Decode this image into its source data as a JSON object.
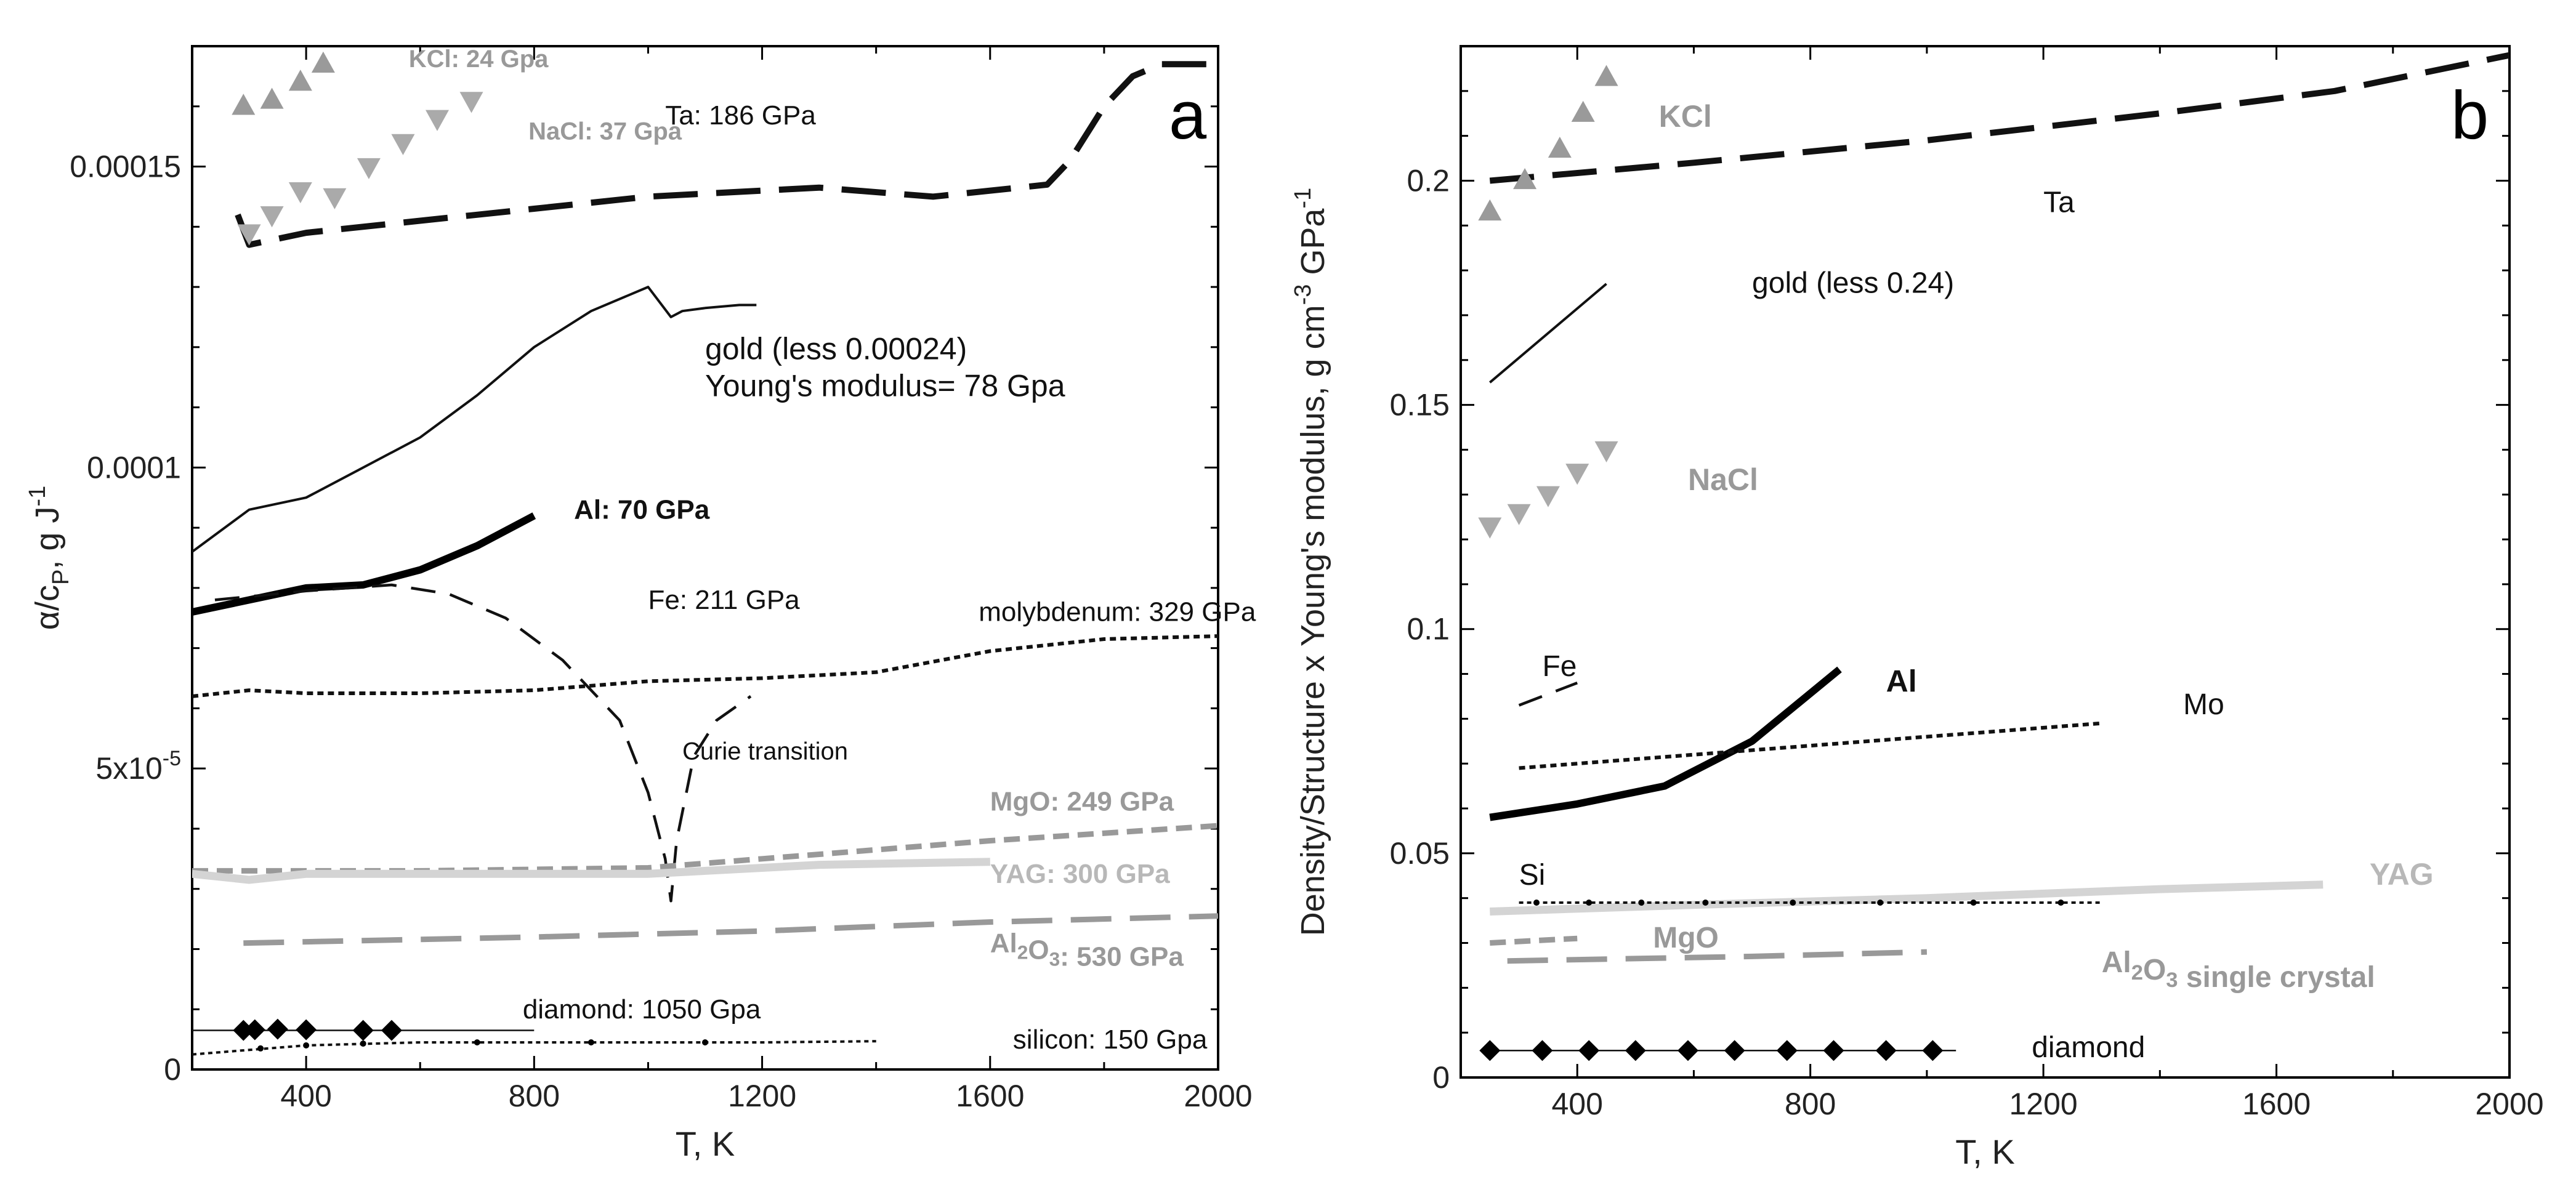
{
  "chart_data": [
    {
      "type": "line",
      "panel_label": "a",
      "xlabel": "T, K",
      "ylabel": "α/cP, g J-1",
      "xlim": [
        200,
        2000
      ],
      "ylim": [
        0,
        0.00017
      ],
      "xticks": [
        400,
        800,
        1200,
        1600,
        2000
      ],
      "yticks": [
        {
          "value": 0,
          "label": "0"
        },
        {
          "value": 5e-05,
          "label": "5x10-5"
        },
        {
          "value": 0.0001,
          "label": "0.0001"
        },
        {
          "value": 0.00015,
          "label": "0.00015"
        }
      ],
      "series": [
        {
          "name": "Ta: 186 GPa",
          "style": "ta",
          "points": [
            [
              280,
              0.000142
            ],
            [
              300,
              0.000137
            ],
            [
              400,
              0.000139
            ],
            [
              600,
              0.000141
            ],
            [
              800,
              0.000143
            ],
            [
              1000,
              0.000145
            ],
            [
              1200,
              0.000146
            ],
            [
              1300,
              0.0001465
            ],
            [
              1500,
              0.000145
            ],
            [
              1700,
              0.000147
            ],
            [
              1740,
              0.000151
            ],
            [
              1800,
              0.00016
            ],
            [
              1850,
              0.000165
            ],
            [
              1900,
              0.000167
            ],
            [
              1980,
              0.000167
            ]
          ]
        },
        {
          "name": "gold (less 0.00024) Young's modulus= 78 Gpa",
          "style": "gold",
          "points": [
            [
              200,
              8.6e-05
            ],
            [
              300,
              9.3e-05
            ],
            [
              400,
              9.5e-05
            ],
            [
              500,
              0.0001
            ],
            [
              600,
              0.000105
            ],
            [
              700,
              0.000112
            ],
            [
              800,
              0.00012
            ],
            [
              900,
              0.000126
            ],
            [
              1000,
              0.00013
            ],
            [
              1040,
              0.000125
            ],
            [
              1060,
              0.000126
            ],
            [
              1100,
              0.0001265
            ],
            [
              1160,
              0.000127
            ],
            [
              1190,
              0.000127
            ]
          ]
        },
        {
          "name": "Al: 70 GPa",
          "style": "al",
          "points": [
            [
              200,
              7.6e-05
            ],
            [
              300,
              7.8e-05
            ],
            [
              400,
              8e-05
            ],
            [
              500,
              8.05e-05
            ],
            [
              600,
              8.3e-05
            ],
            [
              700,
              8.7e-05
            ],
            [
              800,
              9.2e-05
            ]
          ]
        },
        {
          "name": "Fe: 211 GPa",
          "style": "fe",
          "points": [
            [
              240,
              7.8e-05
            ],
            [
              400,
              7.95e-05
            ],
            [
              550,
              8.05e-05
            ],
            [
              650,
              7.9e-05
            ],
            [
              750,
              7.5e-05
            ],
            [
              850,
              6.8e-05
            ],
            [
              950,
              5.8e-05
            ],
            [
              1000,
              4.6e-05
            ],
            [
              1030,
              3.5e-05
            ],
            [
              1040,
              2.8e-05
            ],
            [
              1050,
              3.8e-05
            ],
            [
              1080,
              5.2e-05
            ],
            [
              1120,
              5.8e-05
            ],
            [
              1180,
              6.2e-05
            ]
          ]
        },
        {
          "name": "molybdenum: 329 GPa",
          "style": "mo",
          "points": [
            [
              200,
              6.2e-05
            ],
            [
              300,
              6.3e-05
            ],
            [
              400,
              6.25e-05
            ],
            [
              600,
              6.25e-05
            ],
            [
              800,
              6.3e-05
            ],
            [
              1000,
              6.45e-05
            ],
            [
              1200,
              6.5e-05
            ],
            [
              1400,
              6.6e-05
            ],
            [
              1600,
              6.95e-05
            ],
            [
              1800,
              7.15e-05
            ],
            [
              2000,
              7.2e-05
            ]
          ]
        },
        {
          "name": "MgO: 249 GPa",
          "style": "mgo",
          "points": [
            [
              200,
              3.3e-05
            ],
            [
              600,
              3.3e-05
            ],
            [
              1000,
              3.35e-05
            ],
            [
              1200,
              3.5e-05
            ],
            [
              1400,
              3.65e-05
            ],
            [
              1600,
              3.8e-05
            ],
            [
              2000,
              4.05e-05
            ]
          ]
        },
        {
          "name": "YAG: 300 GPa",
          "style": "yag",
          "points": [
            [
              200,
              3.25e-05
            ],
            [
              300,
              3.15e-05
            ],
            [
              400,
              3.25e-05
            ],
            [
              600,
              3.25e-05
            ],
            [
              1000,
              3.25e-05
            ],
            [
              1300,
              3.4e-05
            ],
            [
              1600,
              3.45e-05
            ]
          ]
        },
        {
          "name": "Al2O3: 530 GPa",
          "style": "al2o3",
          "points": [
            [
              290,
              2.1e-05
            ],
            [
              800,
              2.2e-05
            ],
            [
              1200,
              2.3e-05
            ],
            [
              1600,
              2.45e-05
            ],
            [
              2000,
              2.55e-05
            ]
          ]
        },
        {
          "name": "diamond: 1050 Gpa",
          "style": "diamond",
          "points": [
            [
              200,
              6.5e-06
            ],
            [
              800,
              6.5e-06
            ]
          ],
          "markers": [
            [
              290,
              6.5e-06
            ],
            [
              310,
              6.6e-06
            ],
            [
              350,
              6.7e-06
            ],
            [
              400,
              6.6e-06
            ],
            [
              500,
              6.5e-06
            ],
            [
              550,
              6.5e-06
            ]
          ]
        },
        {
          "name": "silicon: 150 Gpa",
          "style": "silicon",
          "points": [
            [
              200,
              2.5e-06
            ],
            [
              400,
              4e-06
            ],
            [
              600,
              4.5e-06
            ],
            [
              800,
              4.5e-06
            ],
            [
              1200,
              4.5e-06
            ],
            [
              1400,
              4.7e-06
            ]
          ],
          "markers": [
            [
              320,
              3.5e-06
            ],
            [
              400,
              4e-06
            ],
            [
              500,
              4.3e-06
            ],
            [
              700,
              4.5e-06
            ],
            [
              900,
              4.5e-06
            ],
            [
              1100,
              4.5e-06
            ]
          ]
        },
        {
          "name": "KCl: 24 Gpa",
          "style": "kcl",
          "markers": [
            [
              290,
              0.00016
            ],
            [
              340,
              0.000161
            ],
            [
              390,
              0.000164
            ],
            [
              430,
              0.000167
            ]
          ]
        },
        {
          "name": "NaCl: 37 Gpa",
          "style": "nacl",
          "markers": [
            [
              300,
              0.000139
            ],
            [
              340,
              0.000142
            ],
            [
              390,
              0.000146
            ],
            [
              450,
              0.000145
            ],
            [
              510,
              0.00015
            ],
            [
              570,
              0.000154
            ],
            [
              630,
              0.000158
            ],
            [
              690,
              0.000161
            ]
          ]
        }
      ],
      "annotations": [
        {
          "text": "Curie transition",
          "x": 1060,
          "y": 5.15e-05
        }
      ]
    },
    {
      "type": "line",
      "panel_label": "b",
      "xlabel": "T, K",
      "ylabel": "Density/Structure x Young's modulus, g cm-3 GPa-1",
      "xlim": [
        200,
        2000
      ],
      "ylim": [
        0,
        0.23
      ],
      "xticks": [
        400,
        800,
        1200,
        1600,
        2000
      ],
      "yticks": [
        {
          "value": 0,
          "label": "0"
        },
        {
          "value": 0.05,
          "label": "0.05"
        },
        {
          "value": 0.1,
          "label": "0.1"
        },
        {
          "value": 0.15,
          "label": "0.15"
        },
        {
          "value": 0.2,
          "label": "0.2"
        }
      ],
      "series": [
        {
          "name": "Ta",
          "style": "ta",
          "points": [
            [
              250,
              0.2
            ],
            [
              600,
              0.204
            ],
            [
              1000,
              0.209
            ],
            [
              1400,
              0.215
            ],
            [
              1700,
              0.22
            ],
            [
              2000,
              0.228
            ]
          ]
        },
        {
          "name": "gold (less 0.24)",
          "style": "gold",
          "points": [
            [
              250,
              0.155
            ],
            [
              450,
              0.177
            ]
          ]
        },
        {
          "name": "Fe",
          "style": "fe",
          "points": [
            [
              300,
              0.083
            ],
            [
              400,
              0.088
            ]
          ]
        },
        {
          "name": "Al",
          "style": "al",
          "points": [
            [
              250,
              0.058
            ],
            [
              400,
              0.061
            ],
            [
              550,
              0.065
            ],
            [
              700,
              0.075
            ],
            [
              850,
              0.091
            ]
          ]
        },
        {
          "name": "Mo",
          "style": "mo",
          "points": [
            [
              300,
              0.069
            ],
            [
              600,
              0.072
            ],
            [
              900,
              0.075
            ],
            [
              1300,
              0.079
            ]
          ]
        },
        {
          "name": "YAG",
          "style": "yag",
          "points": [
            [
              250,
              0.037
            ],
            [
              600,
              0.0385
            ],
            [
              1000,
              0.04
            ],
            [
              1400,
              0.042
            ],
            [
              1680,
              0.043
            ]
          ]
        },
        {
          "name": "Si",
          "style": "silicon",
          "points": [
            [
              300,
              0.039
            ],
            [
              1300,
              0.039
            ]
          ],
          "markers": [
            [
              330,
              0.039
            ],
            [
              420,
              0.039
            ],
            [
              510,
              0.039
            ],
            [
              620,
              0.039
            ],
            [
              770,
              0.039
            ],
            [
              920,
              0.039
            ],
            [
              1080,
              0.039
            ],
            [
              1230,
              0.039
            ]
          ]
        },
        {
          "name": "MgO",
          "style": "mgo",
          "points": [
            [
              250,
              0.03
            ],
            [
              400,
              0.031
            ]
          ]
        },
        {
          "name": "Al2O3 single crystal",
          "style": "al2o3",
          "points": [
            [
              280,
              0.026
            ],
            [
              700,
              0.027
            ],
            [
              1000,
              0.028
            ]
          ]
        },
        {
          "name": "diamond",
          "style": "diamond",
          "points": [
            [
              250,
              0.006
            ],
            [
              1050,
              0.006
            ]
          ],
          "markers": [
            [
              250,
              0.006
            ],
            [
              340,
              0.006
            ],
            [
              420,
              0.006
            ],
            [
              500,
              0.006
            ],
            [
              590,
              0.006
            ],
            [
              670,
              0.006
            ],
            [
              760,
              0.006
            ],
            [
              840,
              0.006
            ],
            [
              930,
              0.006
            ],
            [
              1010,
              0.006
            ]
          ]
        },
        {
          "name": "KCl",
          "style": "kcl",
          "markers": [
            [
              250,
              0.193
            ],
            [
              310,
              0.2
            ],
            [
              370,
              0.207
            ],
            [
              410,
              0.215
            ],
            [
              450,
              0.223
            ]
          ]
        },
        {
          "name": "NaCl",
          "style": "nacl",
          "markers": [
            [
              250,
              0.123
            ],
            [
              300,
              0.126
            ],
            [
              350,
              0.13
            ],
            [
              400,
              0.135
            ],
            [
              450,
              0.14
            ]
          ]
        }
      ],
      "annotations": []
    }
  ]
}
